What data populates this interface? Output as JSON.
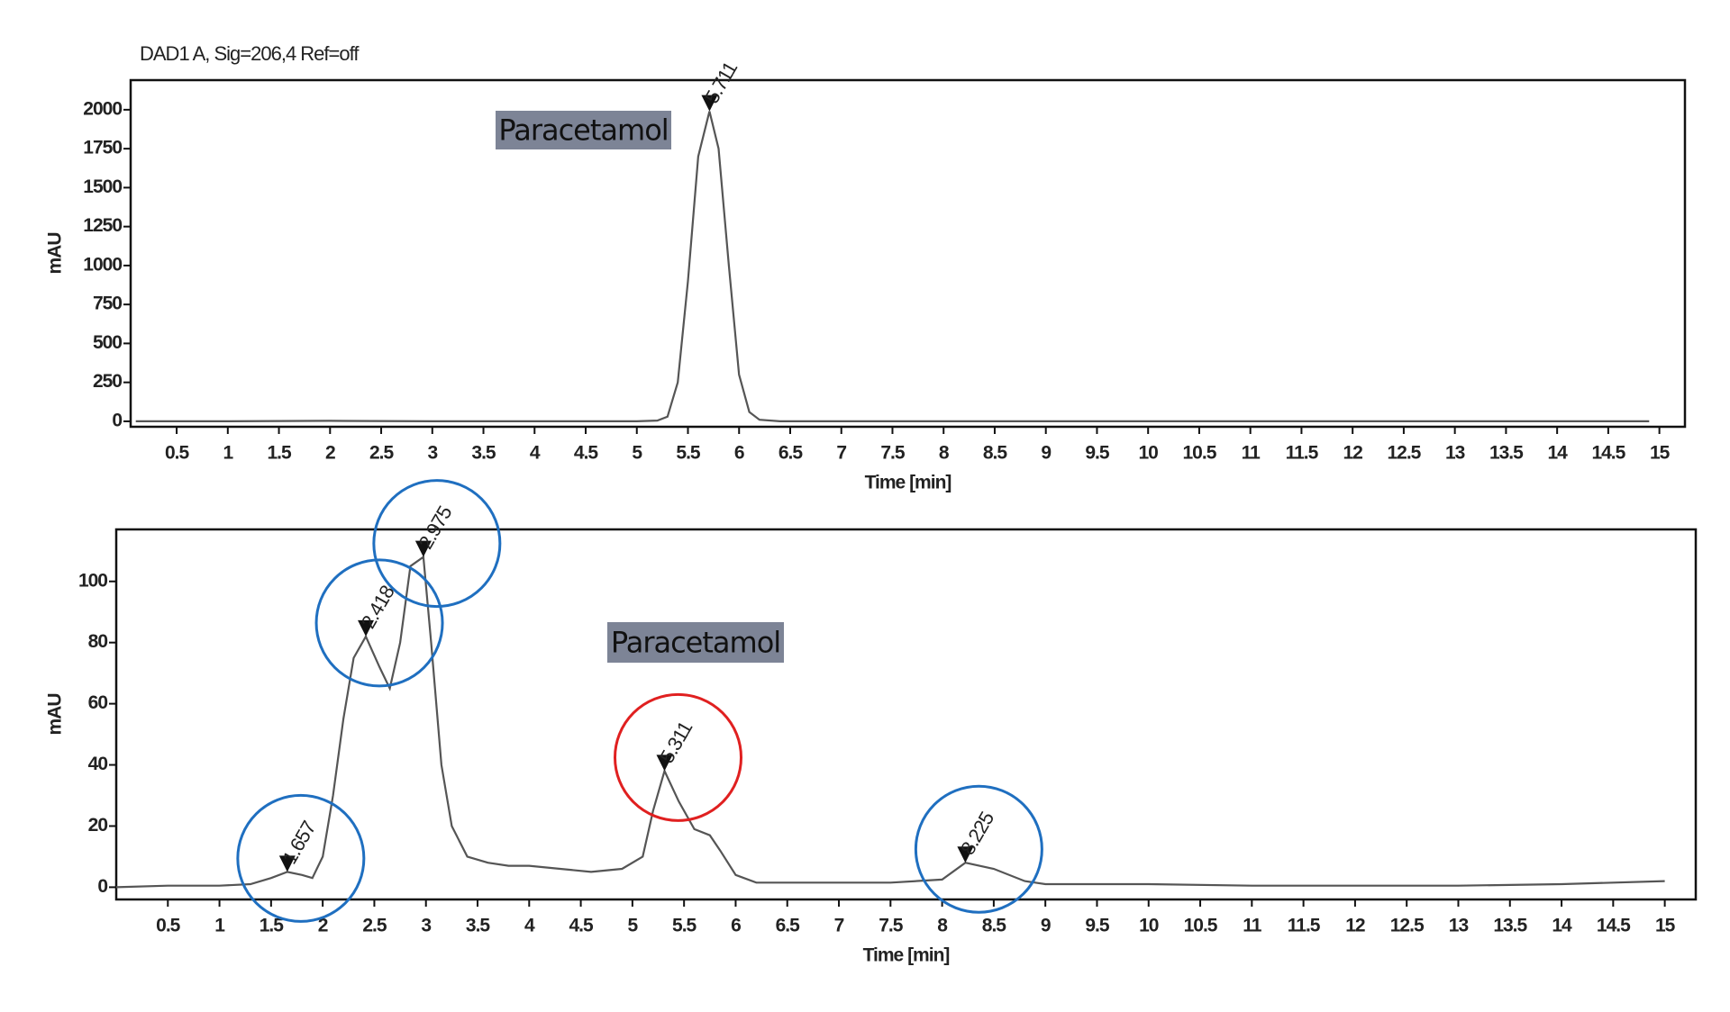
{
  "chart_data": [
    {
      "type": "line",
      "title": "DAD1 A, Sig=206,4 Ref=off",
      "annotation": "Paracetamol",
      "xlabel": "Time [min]",
      "ylabel": "mAU",
      "color": "#555555",
      "x": [
        0.1,
        1,
        2,
        3,
        4,
        5,
        5.2,
        5.3,
        5.4,
        5.5,
        5.6,
        5.711,
        5.8,
        5.9,
        6.0,
        6.1,
        6.2,
        6.4,
        7,
        10,
        14.9
      ],
      "values": [
        0,
        0,
        3,
        0,
        0,
        0,
        5,
        30,
        250,
        900,
        1700,
        1990,
        1750,
        1000,
        300,
        60,
        10,
        0,
        0,
        0,
        0
      ],
      "peaks": [
        {
          "x": 5.711,
          "y": 1990
        }
      ],
      "xlim": [
        0.05,
        15.25
      ],
      "ylim": [
        -35,
        2190
      ],
      "xticks": [
        0.5,
        1,
        1.5,
        2,
        2.5,
        3,
        3.5,
        4,
        4.5,
        5,
        5.5,
        6,
        6.5,
        7,
        7.5,
        8,
        8.5,
        9,
        9.5,
        10,
        10.5,
        11,
        11.5,
        12,
        12.5,
        13,
        13.5,
        14,
        14.5,
        15
      ],
      "yticks": [
        0,
        250,
        500,
        750,
        1000,
        1250,
        1500,
        1750,
        2000
      ]
    },
    {
      "type": "line",
      "annotation": "Paracetamol",
      "xlabel": "Time [min]",
      "ylabel": "mAU",
      "color": "#555555",
      "x": [
        0,
        0.5,
        1,
        1.3,
        1.5,
        1.657,
        1.8,
        1.9,
        2.0,
        2.1,
        2.2,
        2.3,
        2.418,
        2.55,
        2.65,
        2.75,
        2.85,
        2.975,
        3.05,
        3.15,
        3.25,
        3.4,
        3.6,
        3.8,
        4.0,
        4.3,
        4.6,
        4.9,
        5.1,
        5.2,
        5.311,
        5.45,
        5.6,
        5.75,
        5.85,
        6.0,
        6.2,
        6.5,
        7,
        7.5,
        8,
        8.225,
        8.5,
        8.8,
        9,
        10,
        11,
        12,
        13,
        14,
        15
      ],
      "values": [
        0,
        0.5,
        0.5,
        1,
        3,
        5,
        4,
        3,
        10,
        30,
        55,
        75,
        82,
        72,
        65,
        80,
        105,
        108,
        80,
        40,
        20,
        10,
        8,
        7,
        7,
        6,
        5,
        6,
        10,
        25,
        38,
        28,
        19,
        17,
        12,
        4,
        1.5,
        1.5,
        1.5,
        1.5,
        2.5,
        8,
        6,
        2,
        1,
        1,
        0.5,
        0.5,
        0.5,
        1,
        2
      ],
      "peaks": [
        {
          "x": 1.657,
          "y": 5,
          "circle": "#1f6fc0"
        },
        {
          "x": 2.418,
          "y": 82,
          "circle": "#1f6fc0"
        },
        {
          "x": 2.975,
          "y": 108,
          "circle": "#1f6fc0"
        },
        {
          "x": 5.311,
          "y": 38,
          "circle": "#e02020"
        },
        {
          "x": 8.225,
          "y": 8,
          "circle": "#1f6fc0"
        }
      ],
      "xlim": [
        0,
        15.3
      ],
      "ylim": [
        -4,
        117
      ],
      "xticks": [
        0.5,
        1,
        1.5,
        2,
        2.5,
        3,
        3.5,
        4,
        4.5,
        5,
        5.5,
        6,
        6.5,
        7,
        7.5,
        8,
        8.5,
        9,
        9.5,
        10,
        10.5,
        11,
        11.5,
        12,
        12.5,
        13,
        13.5,
        14,
        14.5,
        15
      ],
      "yticks": [
        0,
        20,
        40,
        60,
        80,
        100
      ]
    }
  ]
}
